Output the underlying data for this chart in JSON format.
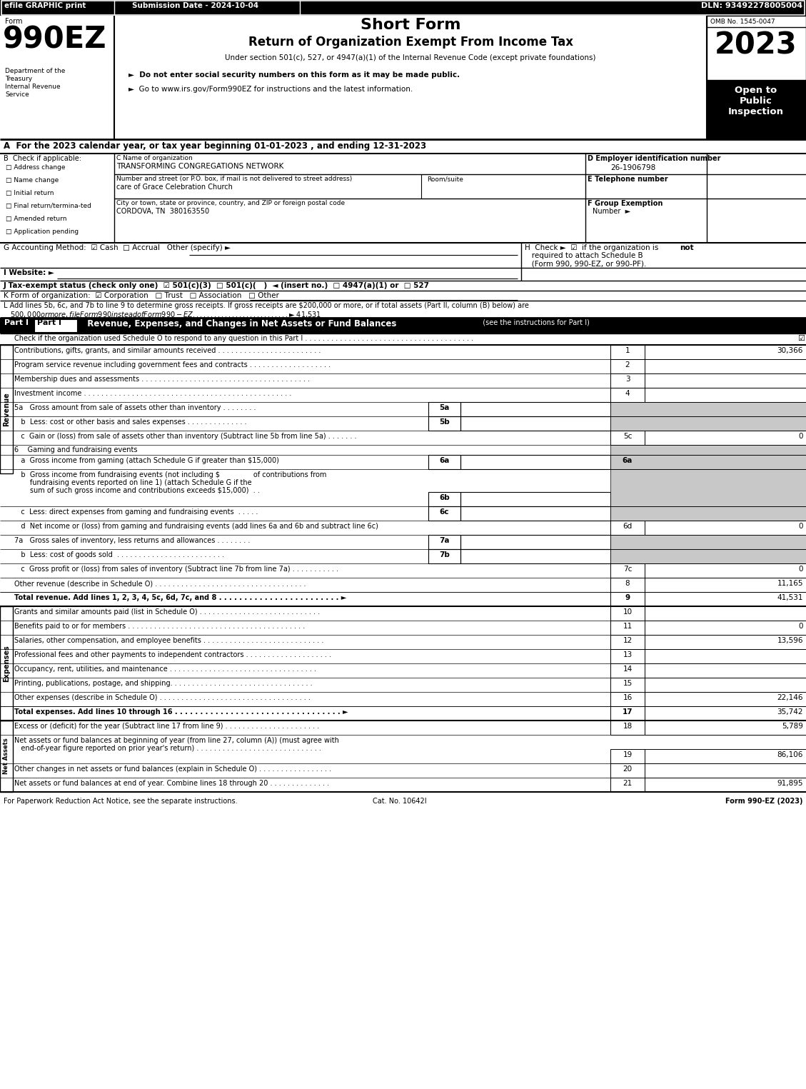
{
  "efile": "efile GRAPHIC print",
  "submission": "Submission Date - 2024-10-04",
  "dln": "DLN: 93492278005004",
  "form_number": "990EZ",
  "year": "2023",
  "omb": "OMB No. 1545-0047",
  "open_to": "Open to\nPublic\nInspection",
  "dept": [
    "Department of the",
    "Treasury",
    "Internal Revenue",
    "Service"
  ],
  "short_form": "Short Form",
  "main_title": "Return of Organization Exempt From Income Tax",
  "subtitle": "Under section 501(c), 527, or 4947(a)(1) of the Internal Revenue Code (except private foundations)",
  "bullet1": "►  Do not enter social security numbers on this form as it may be made public.",
  "bullet2": "►  Go to www.irs.gov/Form990EZ for instructions and the latest information.",
  "line_A": "A  For the 2023 calendar year, or tax year beginning 01-01-2023 , and ending 12-31-2023",
  "checkboxes_B": [
    "Address change",
    "Name change",
    "Initial return",
    "Final return/termina­ted",
    "Amended return",
    "Application pending"
  ],
  "org_name": "TRANSFORMING CONGREGATIONS NETWORK",
  "street_label": "Number and street (or P.O. box, if mail is not delivered to street address)",
  "room_label": "Room/suite",
  "street_value": "care of Grace Celebration Church",
  "city_label": "City or town, state or province, country, and ZIP or foreign postal code",
  "city_value": "CORDOVA, TN  380163550",
  "ein_label": "D Employer identification number",
  "ein": "26-1906798",
  "tel_label": "E Telephone number",
  "grp_label": "F Group Exemption",
  "grp_label2": "Number  ►",
  "line_G": "G Accounting Method:  ☑ Cash  □ Accrual   Other (specify) ►",
  "line_H1": "H  Check ►  ☑  if the organization is ",
  "line_H1b": "not",
  "line_H2": "   required to attach Schedule B",
  "line_H3": "   (Form 990, 990-EZ, or 990-PF).",
  "line_I": "I Website: ►",
  "line_J": "J Tax-exempt status (check only one)  ☑ 501(c)(3)  □ 501(c)(   )  ◄ (insert no.)  □ 4947(a)(1) or  □ 527",
  "line_K": "K Form of organization:  ☑ Corporation   □ Trust   □ Association   □ Other",
  "line_L1": "L Add lines 5b, 6c, and 7b to line 9 to determine gross receipts. If gross receipts are $200,000 or more, or if total assets (Part II, column (B) below) are",
  "line_L2": "   $500,000 or more, file Form 990 instead of Form 990-EZ . . . . . . . . . . . . . . . . . . . . . . . . . . . ► $ 41,531",
  "part1_title": "Revenue, Expenses, and Changes in Net Assets or Fund Balances",
  "part1_sub": "(see the instructions for Part I)",
  "part1_check": "Check if the organization used Schedule O to respond to any question in this Part I",
  "gray": "#c8c8c8",
  "black": "#000000",
  "white": "#ffffff"
}
